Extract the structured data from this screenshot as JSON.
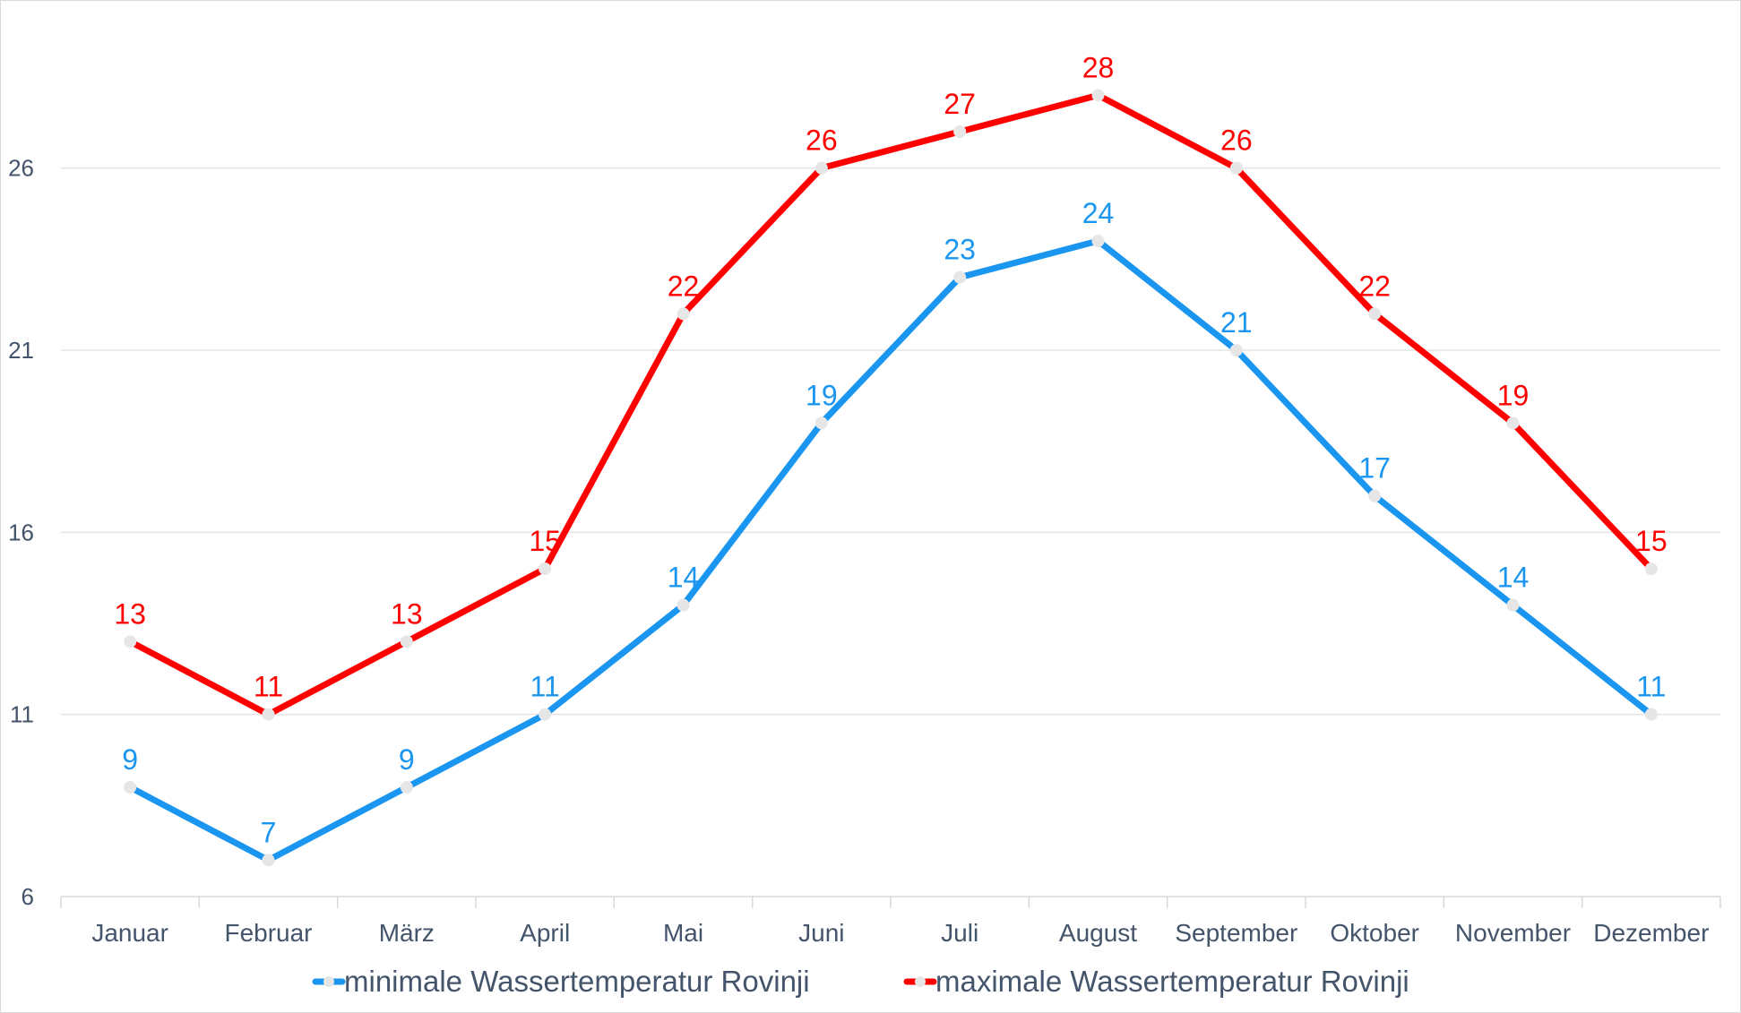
{
  "chart_data": {
    "type": "line",
    "title": "",
    "xlabel": "",
    "ylabel": "",
    "categories": [
      "Januar",
      "Februar",
      "März",
      "April",
      "Mai",
      "Juni",
      "Juli",
      "August",
      "September",
      "Oktober",
      "November",
      "Dezember"
    ],
    "ylim": [
      6,
      30
    ],
    "yticks": [
      6,
      11,
      16,
      21,
      26
    ],
    "grid": true,
    "legend_position": "bottom",
    "series": [
      {
        "name": "minimale Wassertemperatur Rovinji",
        "color": "#1a96f0",
        "values": [
          9,
          7,
          9,
          11,
          14,
          19,
          23,
          24,
          21,
          17,
          14,
          11
        ]
      },
      {
        "name": "maximale Wassertemperatur Rovinji",
        "color": "#ff0000",
        "values": [
          13,
          11,
          13,
          15,
          22,
          26,
          27,
          28,
          26,
          22,
          19,
          15
        ]
      }
    ],
    "marker_color": "#e6e6e6"
  }
}
